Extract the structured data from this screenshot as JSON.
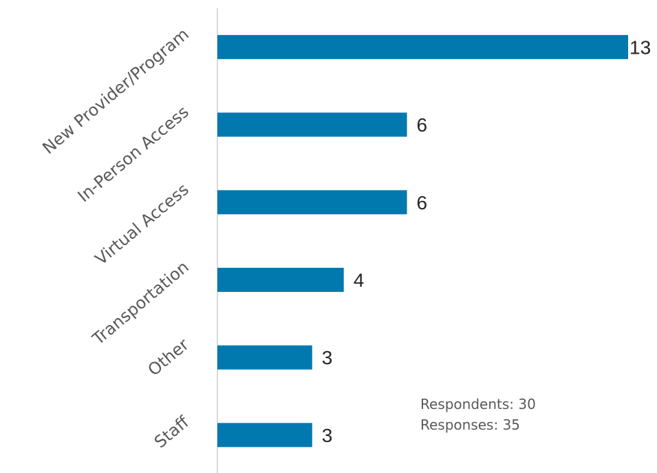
{
  "chart_data": {
    "type": "bar",
    "orientation": "horizontal",
    "categories": [
      "New Provider/Program",
      "In-Person Access",
      "Virtual Access",
      "Transportation",
      "Other",
      "Staff"
    ],
    "values": [
      13,
      6,
      6,
      4,
      3,
      3
    ],
    "bar_color": "#0179AF",
    "xlim": [
      0,
      13
    ],
    "grid": false,
    "legend": "none"
  },
  "notes": {
    "respondents": "Respondents: 30",
    "responses": "Responses: 35"
  }
}
